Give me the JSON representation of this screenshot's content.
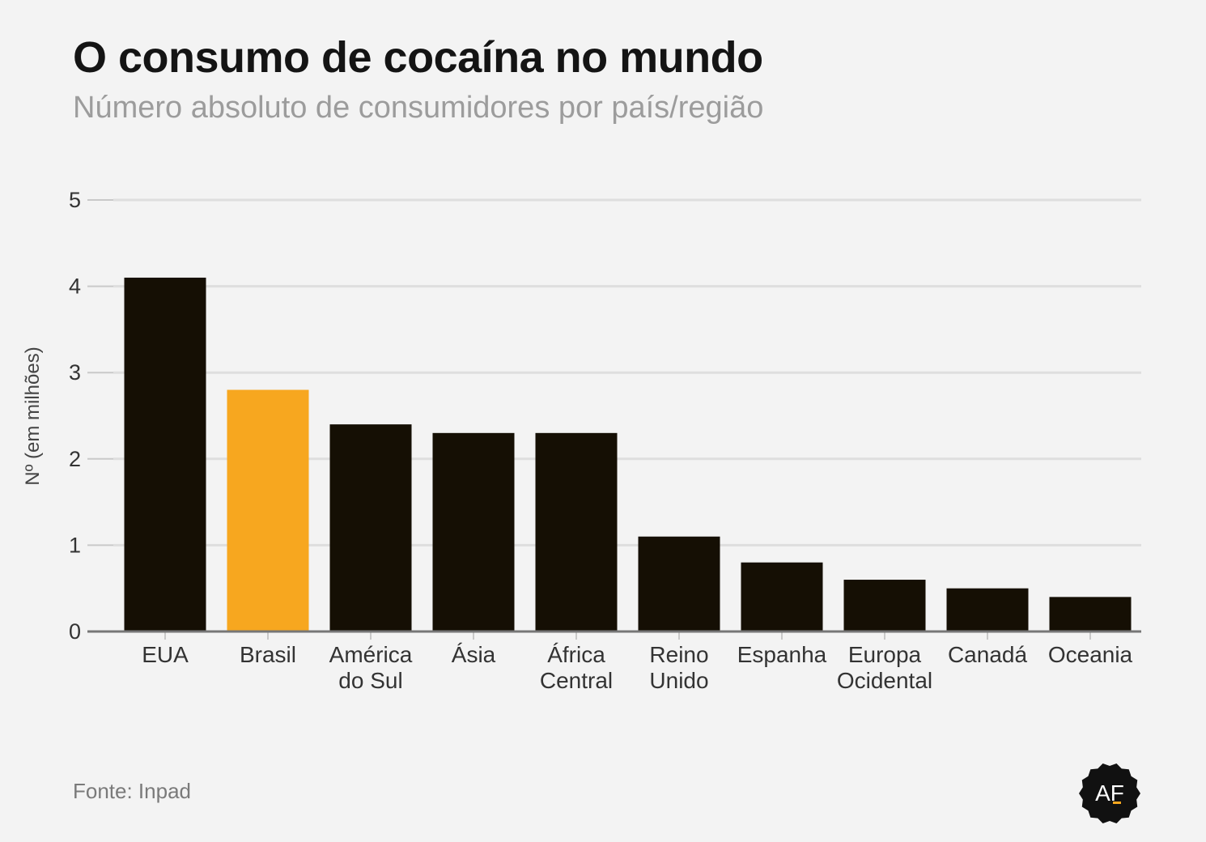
{
  "header": {
    "title": "O consumo de cocaína no mundo",
    "subtitle": "Número absoluto de consumidores por país/região"
  },
  "footer": {
    "source": "Fonte: Inpad",
    "logo_text": "AF"
  },
  "colors": {
    "bar": "#150f04",
    "highlight": "#f7a71f",
    "grid": "#dedede",
    "axis": "#777777",
    "tick_text": "#333333"
  },
  "chart_data": {
    "type": "bar",
    "title": "O consumo de cocaína no mundo",
    "subtitle": "Número absoluto de consumidores por país/região",
    "xlabel": "",
    "ylabel": "Nº (em milhões)",
    "categories": [
      [
        "EUA"
      ],
      [
        "Brasil"
      ],
      [
        "América",
        "do Sul"
      ],
      [
        "Ásia"
      ],
      [
        "África",
        "Central"
      ],
      [
        "Reino",
        "Unido"
      ],
      [
        "Espanha"
      ],
      [
        "Europa",
        "Ocidental"
      ],
      [
        "Canadá"
      ],
      [
        "Oceania"
      ]
    ],
    "values": [
      4.1,
      2.8,
      2.4,
      2.3,
      2.3,
      1.1,
      0.8,
      0.6,
      0.5,
      0.4
    ],
    "highlight": [
      "Brasil"
    ],
    "ylim": [
      0,
      5
    ],
    "yticks": [
      0,
      1,
      2,
      3,
      4,
      5
    ],
    "grid": true,
    "legend": "none"
  }
}
